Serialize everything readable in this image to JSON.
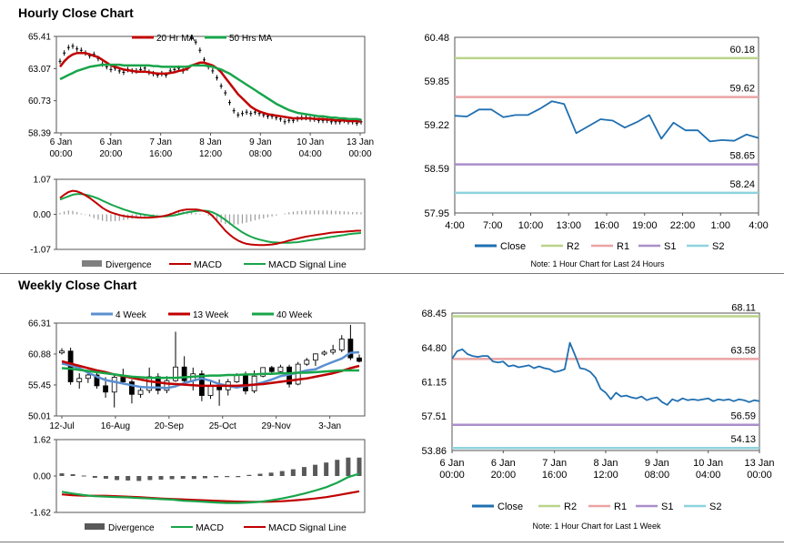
{
  "sections": {
    "hourly_title": "Hourly Close Chart",
    "weekly_title": "Weekly Close Chart"
  },
  "chart_data": [
    {
      "id": "hourly_price",
      "type": "line",
      "title": "",
      "legend": [
        "20 Hr MA",
        "50 Hrs MA"
      ],
      "legend_colors": [
        "#c00000",
        "#18a54a"
      ],
      "y_ticks": [
        "65.41",
        "63.07",
        "60.73",
        "58.39"
      ],
      "ylim": [
        58.39,
        65.41
      ],
      "x_ticks": [
        [
          "6 Jan",
          "00:00"
        ],
        [
          "6 Jan",
          "20:00"
        ],
        [
          "7 Jan",
          "16:00"
        ],
        [
          "8 Jan",
          "12:00"
        ],
        [
          "9 Jan",
          "08:00"
        ],
        [
          "10 Jan",
          "04:00"
        ],
        [
          "13 Jan",
          "00:00"
        ]
      ],
      "close": [
        63.6,
        64.2,
        64.6,
        64.7,
        64.5,
        64.4,
        64.2,
        64.0,
        64.1,
        63.8,
        63.4,
        63.2,
        63.0,
        63.1,
        62.9,
        62.8,
        63.0,
        62.9,
        62.9,
        63.0,
        63.1,
        62.8,
        62.7,
        62.6,
        62.7,
        62.6,
        62.9,
        63.0,
        63.1,
        62.9,
        63.1,
        65.3,
        65.0,
        64.4,
        63.7,
        63.2,
        62.9,
        62.4,
        61.8,
        61.3,
        60.6,
        60.0,
        59.7,
        59.8,
        59.9,
        59.8,
        59.9,
        59.8,
        59.7,
        59.6,
        59.6,
        59.5,
        59.4,
        59.2,
        59.3,
        59.3,
        59.4,
        59.5,
        59.5,
        59.4,
        59.4,
        59.3,
        59.3,
        59.3,
        59.2,
        59.2,
        59.2,
        59.3,
        59.2,
        59.2,
        59.1,
        59.2
      ],
      "series": [
        {
          "name": "20 Hr MA",
          "color": "#c00000",
          "values": [
            63.2,
            63.6,
            63.9,
            64.1,
            64.2,
            64.2,
            64.2,
            64.1,
            64.0,
            63.9,
            63.7,
            63.5,
            63.3,
            63.2,
            63.1,
            63.0,
            62.95,
            62.9,
            62.85,
            62.85,
            62.85,
            62.8,
            62.75,
            62.7,
            62.7,
            62.7,
            62.75,
            62.8,
            62.9,
            62.95,
            63.05,
            63.3,
            63.4,
            63.5,
            63.5,
            63.4,
            63.3,
            63.1,
            62.8,
            62.4,
            62.0,
            61.6,
            61.2,
            60.9,
            60.6,
            60.3,
            60.1,
            59.95,
            59.85,
            59.75,
            59.7,
            59.65,
            59.6,
            59.55,
            59.5,
            59.45,
            59.45,
            59.45,
            59.45,
            59.45,
            59.4,
            59.4,
            59.4,
            59.35,
            59.35,
            59.3,
            59.3,
            59.3,
            59.25,
            59.25,
            59.25,
            59.2
          ]
        },
        {
          "name": "50 Hrs MA",
          "color": "#18a54a",
          "values": [
            62.3,
            62.45,
            62.6,
            62.75,
            62.9,
            63.0,
            63.1,
            63.2,
            63.25,
            63.3,
            63.35,
            63.35,
            63.35,
            63.35,
            63.35,
            63.3,
            63.3,
            63.3,
            63.3,
            63.3,
            63.3,
            63.3,
            63.25,
            63.25,
            63.2,
            63.2,
            63.2,
            63.2,
            63.2,
            63.2,
            63.2,
            63.3,
            63.3,
            63.3,
            63.3,
            63.25,
            63.2,
            63.1,
            63.0,
            62.85,
            62.7,
            62.5,
            62.3,
            62.1,
            61.9,
            61.7,
            61.5,
            61.3,
            61.1,
            60.9,
            60.7,
            60.5,
            60.35,
            60.2,
            60.05,
            59.95,
            59.85,
            59.8,
            59.75,
            59.7,
            59.65,
            59.6,
            59.6,
            59.55,
            59.5,
            59.5,
            59.45,
            59.45,
            59.4,
            59.4,
            59.4,
            59.35
          ]
        }
      ]
    },
    {
      "id": "hourly_macd",
      "type": "bar",
      "legend": [
        "Divergence",
        "MACD",
        "MACD Signal Line"
      ],
      "legend_colors": [
        "#808080",
        "#c00000",
        "#18a54a"
      ],
      "y_ticks": [
        "1.07",
        "0.00",
        "-1.07"
      ],
      "ylim": [
        -1.07,
        1.07
      ],
      "series": [
        {
          "name": "MACD",
          "color": "#c00000",
          "values": [
            0.5,
            0.6,
            0.68,
            0.72,
            0.7,
            0.65,
            0.58,
            0.5,
            0.4,
            0.3,
            0.2,
            0.12,
            0.06,
            0.02,
            -0.02,
            -0.05,
            -0.07,
            -0.08,
            -0.09,
            -0.1,
            -0.1,
            -0.1,
            -0.09,
            -0.08,
            -0.06,
            -0.04,
            0.0,
            0.05,
            0.1,
            0.13,
            0.15,
            0.15,
            0.15,
            0.13,
            0.1,
            0.05,
            -0.05,
            -0.2,
            -0.35,
            -0.5,
            -0.62,
            -0.72,
            -0.8,
            -0.86,
            -0.9,
            -0.92,
            -0.93,
            -0.94,
            -0.94,
            -0.93,
            -0.92,
            -0.9,
            -0.87,
            -0.84,
            -0.8,
            -0.77,
            -0.74,
            -0.71,
            -0.68,
            -0.66,
            -0.64,
            -0.62,
            -0.6,
            -0.58,
            -0.56,
            -0.55,
            -0.54,
            -0.53,
            -0.52,
            -0.51,
            -0.5,
            -0.5
          ]
        },
        {
          "name": "MACD Signal Line",
          "color": "#18a54a",
          "values": [
            0.45,
            0.5,
            0.55,
            0.6,
            0.62,
            0.62,
            0.6,
            0.57,
            0.53,
            0.48,
            0.42,
            0.36,
            0.3,
            0.25,
            0.2,
            0.15,
            0.11,
            0.07,
            0.04,
            0.01,
            -0.01,
            -0.03,
            -0.05,
            -0.06,
            -0.06,
            -0.06,
            -0.05,
            -0.03,
            0.0,
            0.03,
            0.06,
            0.08,
            0.1,
            0.11,
            0.11,
            0.1,
            0.06,
            0.0,
            -0.08,
            -0.17,
            -0.27,
            -0.37,
            -0.46,
            -0.55,
            -0.62,
            -0.68,
            -0.73,
            -0.77,
            -0.8,
            -0.83,
            -0.85,
            -0.86,
            -0.87,
            -0.87,
            -0.87,
            -0.86,
            -0.85,
            -0.83,
            -0.81,
            -0.79,
            -0.77,
            -0.75,
            -0.73,
            -0.71,
            -0.69,
            -0.67,
            -0.65,
            -0.63,
            -0.61,
            -0.59,
            -0.58,
            -0.57
          ]
        }
      ]
    },
    {
      "id": "hourly_levels",
      "type": "line",
      "y_ticks": [
        "60.48",
        "59.85",
        "59.22",
        "58.59",
        "57.95"
      ],
      "ylim": [
        57.95,
        60.48
      ],
      "x_ticks": [
        "4:00",
        "7:00",
        "10:00",
        "13:00",
        "16:00",
        "19:00",
        "22:00",
        "1:00",
        "4:00"
      ],
      "close": [
        59.35,
        59.34,
        59.44,
        59.44,
        59.33,
        59.36,
        59.36,
        59.45,
        59.56,
        59.52,
        59.1,
        59.2,
        59.3,
        59.28,
        59.18,
        59.26,
        59.36,
        59.02,
        59.25,
        59.14,
        59.14,
        58.98,
        59.0,
        58.99,
        59.08,
        59.03
      ],
      "levels": [
        {
          "name": "R2",
          "value": 60.18,
          "label": "60.18",
          "color": "#b9d48a"
        },
        {
          "name": "R1",
          "value": 59.62,
          "label": "59.62",
          "color": "#eaa3a3"
        },
        {
          "name": "S1",
          "value": 58.65,
          "label": "58.65",
          "color": "#aa8ec9"
        },
        {
          "name": "S2",
          "value": 58.24,
          "label": "58.24",
          "color": "#8ed3de"
        }
      ],
      "legend": [
        "Close",
        "R2",
        "R1",
        "S1",
        "S2"
      ],
      "note": "Note: 1 Hour Chart for Last 24 Hours"
    },
    {
      "id": "weekly_price",
      "type": "line",
      "legend": [
        "4 Week",
        "13 Week",
        "40 Week"
      ],
      "legend_colors": [
        "#5b8fd0",
        "#c00000",
        "#18a54a"
      ],
      "y_ticks": [
        "66.31",
        "60.88",
        "55.45",
        "50.01"
      ],
      "ylim": [
        50.01,
        66.31
      ],
      "x_ticks": [
        "12-Jul",
        "16-Aug",
        "20-Sep",
        "25-Oct",
        "29-Nov",
        "3-Jan"
      ],
      "candles": [
        [
          61.2,
          61.9,
          60.8,
          61.4
        ],
        [
          61.4,
          62.0,
          55.5,
          56.0
        ],
        [
          56.0,
          57.5,
          54.8,
          56.6
        ],
        [
          56.6,
          58.0,
          55.8,
          57.2
        ],
        [
          57.2,
          57.9,
          54.8,
          55.3
        ],
        [
          55.3,
          56.8,
          53.2,
          54.2
        ],
        [
          54.2,
          57.2,
          51.5,
          56.8
        ],
        [
          56.8,
          58.3,
          55.8,
          56.0
        ],
        [
          56.0,
          56.4,
          52.2,
          53.8
        ],
        [
          53.8,
          55.0,
          53.2,
          54.5
        ],
        [
          54.5,
          58.5,
          54.0,
          56.9
        ],
        [
          56.9,
          57.5,
          53.8,
          54.5
        ],
        [
          54.5,
          57.0,
          54.0,
          56.2
        ],
        [
          56.2,
          64.8,
          56.0,
          58.6
        ],
        [
          58.6,
          60.5,
          55.8,
          56.2
        ],
        [
          56.2,
          58.5,
          54.5,
          57.4
        ],
        [
          57.4,
          58.0,
          52.6,
          53.6
        ],
        [
          53.6,
          56.0,
          53.0,
          55.4
        ],
        [
          55.4,
          56.4,
          51.8,
          54.6
        ],
        [
          54.6,
          56.5,
          53.6,
          56.0
        ],
        [
          56.0,
          57.5,
          55.8,
          57.3
        ],
        [
          57.3,
          57.8,
          53.8,
          54.4
        ],
        [
          54.4,
          58.0,
          54.0,
          57.0
        ],
        [
          57.0,
          58.5,
          56.8,
          58.5
        ],
        [
          58.5,
          58.8,
          57.6,
          57.8
        ],
        [
          57.8,
          59.0,
          57.5,
          58.6
        ],
        [
          58.6,
          59.0,
          55.0,
          55.6
        ],
        [
          55.6,
          59.5,
          55.4,
          59.1
        ],
        [
          59.1,
          60.2,
          58.8,
          59.8
        ],
        [
          59.8,
          61.0,
          58.8,
          60.9
        ],
        [
          60.9,
          61.5,
          60.6,
          61.2
        ],
        [
          61.2,
          62.5,
          60.8,
          61.6
        ],
        [
          61.6,
          64.2,
          61.2,
          63.5
        ],
        [
          63.5,
          66.0,
          59.8,
          60.2
        ],
        [
          60.2,
          60.8,
          59.4,
          59.6
        ]
      ],
      "series": [
        {
          "name": "4 Week",
          "color": "#5b8fd0",
          "values": [
            59.2,
            58.9,
            58.4,
            57.6,
            56.9,
            56.3,
            56.0,
            55.7,
            55.4,
            55.1,
            55.0,
            55.0,
            54.9,
            55.2,
            55.8,
            56.2,
            56.6,
            56.2,
            55.6,
            55.3,
            55.0,
            55.3,
            55.5,
            55.9,
            56.4,
            57.0,
            57.3,
            57.6,
            58.0,
            58.2,
            58.9,
            59.5,
            60.1,
            61.1,
            61.2
          ]
        },
        {
          "name": "13 Week",
          "color": "#c00000",
          "values": [
            59.6,
            59.2,
            58.8,
            58.4,
            58.0,
            57.7,
            57.3,
            57.0,
            56.7,
            56.4,
            56.1,
            55.9,
            55.7,
            55.6,
            55.5,
            55.4,
            55.3,
            55.3,
            55.3,
            55.3,
            55.3,
            55.4,
            55.5,
            55.6,
            55.8,
            56.0,
            56.2,
            56.4,
            56.6,
            56.9,
            57.2,
            57.5,
            57.9,
            58.4,
            58.8
          ]
        },
        {
          "name": "40 Week",
          "color": "#18a54a",
          "values": [
            58.4,
            58.3,
            58.1,
            57.9,
            57.7,
            57.5,
            57.3,
            57.1,
            56.9,
            56.8,
            56.7,
            56.7,
            56.7,
            56.7,
            56.8,
            56.9,
            57.0,
            57.1,
            57.1,
            57.2,
            57.2,
            57.3,
            57.3,
            57.4,
            57.4,
            57.5,
            57.5,
            57.6,
            57.6,
            57.7,
            57.8,
            57.9,
            58.0,
            58.0,
            58.0
          ]
        }
      ]
    },
    {
      "id": "weekly_macd",
      "type": "bar",
      "legend": [
        "Divergence",
        "MACD",
        "MACD Signal Line"
      ],
      "legend_colors": [
        "#595959",
        "#18a54a",
        "#c00000"
      ],
      "y_ticks": [
        "1.62",
        "0.00",
        "-1.62"
      ],
      "ylim": [
        -1.62,
        1.62
      ],
      "divergence": [
        0.12,
        0.08,
        0.02,
        -0.08,
        -0.12,
        -0.18,
        -0.2,
        -0.22,
        -0.18,
        -0.16,
        -0.14,
        -0.12,
        -0.13,
        -0.1,
        -0.06,
        -0.05,
        -0.05,
        0.05,
        0.1,
        0.15,
        0.22,
        0.3,
        0.4,
        0.5,
        0.6,
        0.72,
        0.82,
        0.82
      ],
      "series": [
        {
          "name": "MACD",
          "color": "#18a54a",
          "values": [
            -0.7,
            -0.78,
            -0.85,
            -0.9,
            -0.92,
            -0.94,
            -0.95,
            -0.98,
            -1.0,
            -1.03,
            -1.05,
            -1.1,
            -1.12,
            -1.15,
            -1.18,
            -1.2,
            -1.2,
            -1.18,
            -1.15,
            -1.08,
            -1.0,
            -0.9,
            -0.78,
            -0.65,
            -0.5,
            -0.3,
            -0.05,
            0.1
          ]
        },
        {
          "name": "MACD Signal Line",
          "color": "#c00000",
          "values": [
            -0.82,
            -0.86,
            -0.88,
            -0.88,
            -0.88,
            -0.9,
            -0.92,
            -0.94,
            -0.97,
            -1.0,
            -1.02,
            -1.04,
            -1.06,
            -1.08,
            -1.1,
            -1.12,
            -1.14,
            -1.15,
            -1.15,
            -1.14,
            -1.12,
            -1.09,
            -1.05,
            -1.0,
            -0.94,
            -0.86,
            -0.77,
            -0.68
          ]
        }
      ]
    },
    {
      "id": "weekly_levels",
      "type": "line",
      "y_ticks": [
        "68.45",
        "64.80",
        "61.15",
        "57.51",
        "53.86"
      ],
      "ylim": [
        53.86,
        68.45
      ],
      "x_ticks": [
        [
          "6 Jan",
          "00:00"
        ],
        [
          "6 Jan",
          "20:00"
        ],
        [
          "7 Jan",
          "16:00"
        ],
        [
          "8 Jan",
          "12:00"
        ],
        [
          "9 Jan",
          "08:00"
        ],
        [
          "10 Jan",
          "04:00"
        ],
        [
          "13 Jan",
          "00:00"
        ]
      ],
      "close": [
        63.6,
        64.4,
        64.6,
        64.1,
        63.9,
        63.8,
        63.9,
        63.9,
        63.3,
        63.2,
        63.3,
        62.8,
        62.9,
        62.7,
        62.8,
        62.9,
        62.6,
        62.8,
        62.6,
        62.5,
        62.2,
        62.3,
        62.5,
        65.3,
        64.0,
        62.6,
        62.5,
        62.2,
        61.6,
        60.4,
        60.0,
        59.3,
        60.0,
        59.6,
        59.7,
        59.5,
        59.4,
        59.6,
        59.2,
        59.4,
        59.5,
        59.0,
        58.7,
        59.3,
        59.1,
        59.4,
        59.2,
        59.3,
        59.2,
        59.3,
        59.4,
        59.1,
        59.3,
        59.2,
        59.3,
        59.1,
        59.3,
        59.2,
        59.0,
        59.2,
        59.1
      ],
      "levels": [
        {
          "name": "R2",
          "value": 68.11,
          "label": "68.11",
          "color": "#b9d48a"
        },
        {
          "name": "R1",
          "value": 63.58,
          "label": "63.58",
          "color": "#eaa3a3"
        },
        {
          "name": "S1",
          "value": 56.59,
          "label": "56.59",
          "color": "#aa8ec9"
        },
        {
          "name": "S2",
          "value": 54.13,
          "label": "54.13",
          "color": "#8ed3de"
        }
      ],
      "legend": [
        "Close",
        "R2",
        "R1",
        "S1",
        "S2"
      ],
      "note": "Note: 1 Hour Chart for Last 1 Week"
    }
  ]
}
